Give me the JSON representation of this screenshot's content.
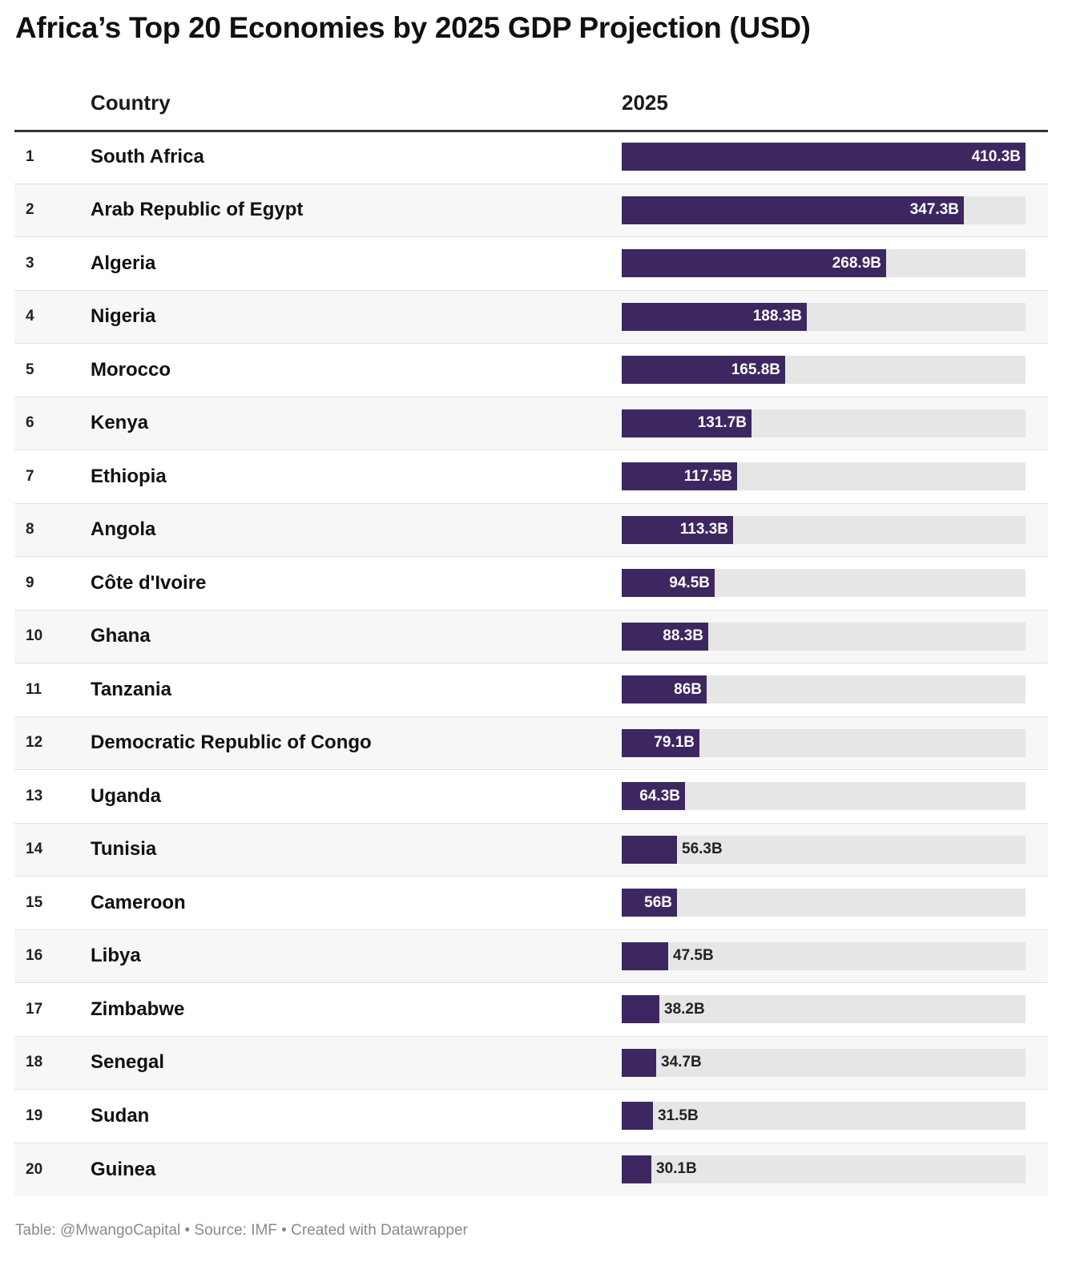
{
  "title": "Africa’s Top 20 Economies by 2025 GDP Projection (USD)",
  "header": {
    "country": "Country",
    "year": "2025"
  },
  "footer": "Table: @MwangoCapital • Source: IMF  • Created with Datawrapper",
  "colors": {
    "bar": "#3d2760",
    "track": "#e6e6e6",
    "alt_row": "#f7f7f7"
  },
  "chart_data": {
    "type": "bar",
    "title": "Africa’s Top 20 Economies by 2025 GDP Projection (USD)",
    "xlabel": "",
    "ylabel": "2025",
    "ylim": [
      0,
      410.3
    ],
    "categories": [
      "South Africa",
      "Arab Republic of Egypt",
      "Algeria",
      "Nigeria",
      "Morocco",
      "Kenya",
      "Ethiopia",
      "Angola",
      "Côte d'Ivoire",
      "Ghana",
      "Tanzania",
      "Democratic Republic of Congo",
      "Uganda",
      "Tunisia",
      "Cameroon",
      "Libya",
      "Zimbabwe",
      "Senegal",
      "Sudan",
      "Guinea"
    ],
    "ranks": [
      "1",
      "2",
      "3",
      "4",
      "5",
      "6",
      "7",
      "8",
      "9",
      "10",
      "11",
      "12",
      "13",
      "14",
      "15",
      "16",
      "17",
      "18",
      "19",
      "20"
    ],
    "values": [
      410.3,
      347.3,
      268.9,
      188.3,
      165.8,
      131.7,
      117.5,
      113.3,
      94.5,
      88.3,
      86,
      79.1,
      64.3,
      56.3,
      56,
      47.5,
      38.2,
      34.7,
      31.5,
      30.1
    ],
    "labels": [
      "410.3B",
      "347.3B",
      "268.9B",
      "188.3B",
      "165.8B",
      "131.7B",
      "117.5B",
      "113.3B",
      "94.5B",
      "88.3B",
      "86B",
      "79.1B",
      "64.3B",
      "56.3B",
      "56B",
      "47.5B",
      "38.2B",
      "34.7B",
      "31.5B",
      "30.1B"
    ],
    "label_inside": [
      true,
      true,
      true,
      true,
      true,
      true,
      true,
      true,
      true,
      true,
      true,
      true,
      true,
      false,
      true,
      false,
      false,
      false,
      false,
      false
    ]
  }
}
